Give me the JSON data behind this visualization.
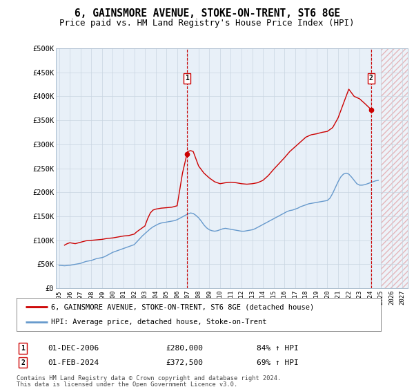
{
  "title": "6, GAINSMORE AVENUE, STOKE-ON-TRENT, ST6 8GE",
  "subtitle": "Price paid vs. HM Land Registry's House Price Index (HPI)",
  "title_fontsize": 10.5,
  "subtitle_fontsize": 9,
  "ylim": [
    0,
    500000
  ],
  "yticks": [
    0,
    50000,
    100000,
    150000,
    200000,
    250000,
    300000,
    350000,
    400000,
    450000,
    500000
  ],
  "ytick_labels": [
    "£0",
    "£50K",
    "£100K",
    "£150K",
    "£200K",
    "£250K",
    "£300K",
    "£350K",
    "£400K",
    "£450K",
    "£500K"
  ],
  "xlim_start": 1994.7,
  "xlim_end": 2027.5,
  "xticks": [
    1995,
    1996,
    1997,
    1998,
    1999,
    2000,
    2001,
    2002,
    2003,
    2004,
    2005,
    2006,
    2007,
    2008,
    2009,
    2010,
    2011,
    2012,
    2013,
    2014,
    2015,
    2016,
    2017,
    2018,
    2019,
    2020,
    2021,
    2022,
    2023,
    2024,
    2025,
    2026,
    2027
  ],
  "hpi_color": "#6699cc",
  "property_color": "#cc0000",
  "marker1_x": 2006.917,
  "marker1_y": 280000,
  "marker2_x": 2024.083,
  "marker2_y": 372500,
  "marker1_label": "01-DEC-2006",
  "marker1_price": "£280,000",
  "marker1_hpi": "84% ↑ HPI",
  "marker2_label": "01-FEB-2024",
  "marker2_price": "£372,500",
  "marker2_hpi": "69% ↑ HPI",
  "legend_line1": "6, GAINSMORE AVENUE, STOKE-ON-TRENT, ST6 8GE (detached house)",
  "legend_line2": "HPI: Average price, detached house, Stoke-on-Trent",
  "footer_line1": "Contains HM Land Registry data © Crown copyright and database right 2024.",
  "footer_line2": "This data is licensed under the Open Government Licence v3.0.",
  "plot_bg": "#e8f0f8",
  "hatch_start": 2025.0,
  "hpi_data_x": [
    1995.0,
    1995.25,
    1995.5,
    1995.75,
    1996.0,
    1996.25,
    1996.5,
    1996.75,
    1997.0,
    1997.25,
    1997.5,
    1997.75,
    1998.0,
    1998.25,
    1998.5,
    1998.75,
    1999.0,
    1999.25,
    1999.5,
    1999.75,
    2000.0,
    2000.25,
    2000.5,
    2000.75,
    2001.0,
    2001.25,
    2001.5,
    2001.75,
    2002.0,
    2002.25,
    2002.5,
    2002.75,
    2003.0,
    2003.25,
    2003.5,
    2003.75,
    2004.0,
    2004.25,
    2004.5,
    2004.75,
    2005.0,
    2005.25,
    2005.5,
    2005.75,
    2006.0,
    2006.25,
    2006.5,
    2006.75,
    2007.0,
    2007.25,
    2007.5,
    2007.75,
    2008.0,
    2008.25,
    2008.5,
    2008.75,
    2009.0,
    2009.25,
    2009.5,
    2009.75,
    2010.0,
    2010.25,
    2010.5,
    2010.75,
    2011.0,
    2011.25,
    2011.5,
    2011.75,
    2012.0,
    2012.25,
    2012.5,
    2012.75,
    2013.0,
    2013.25,
    2013.5,
    2013.75,
    2014.0,
    2014.25,
    2014.5,
    2014.75,
    2015.0,
    2015.25,
    2015.5,
    2015.75,
    2016.0,
    2016.25,
    2016.5,
    2016.75,
    2017.0,
    2017.25,
    2017.5,
    2017.75,
    2018.0,
    2018.25,
    2018.5,
    2018.75,
    2019.0,
    2019.25,
    2019.5,
    2019.75,
    2020.0,
    2020.25,
    2020.5,
    2020.75,
    2021.0,
    2021.25,
    2021.5,
    2021.75,
    2022.0,
    2022.25,
    2022.5,
    2022.75,
    2023.0,
    2023.25,
    2023.5,
    2023.75,
    2024.0,
    2024.25,
    2024.5,
    2024.75
  ],
  "hpi_data_y": [
    48000,
    47500,
    47000,
    47500,
    48000,
    49000,
    50000,
    51000,
    52000,
    54000,
    56000,
    57000,
    58000,
    60000,
    62000,
    63000,
    64000,
    66000,
    69000,
    72000,
    75000,
    77000,
    79000,
    81000,
    83000,
    85000,
    87000,
    89000,
    91000,
    97000,
    103000,
    109000,
    114000,
    119000,
    124000,
    128000,
    131000,
    134000,
    136000,
    137000,
    138000,
    139000,
    140000,
    141000,
    143000,
    146000,
    149000,
    152000,
    155000,
    157000,
    156000,
    152000,
    147000,
    140000,
    132000,
    126000,
    122000,
    120000,
    119000,
    120000,
    122000,
    124000,
    125000,
    124000,
    123000,
    122000,
    121000,
    120000,
    119000,
    119000,
    120000,
    121000,
    122000,
    124000,
    127000,
    130000,
    133000,
    136000,
    139000,
    142000,
    145000,
    148000,
    151000,
    154000,
    157000,
    160000,
    162000,
    163000,
    165000,
    167000,
    170000,
    172000,
    174000,
    176000,
    177000,
    178000,
    179000,
    180000,
    181000,
    182000,
    183000,
    188000,
    198000,
    210000,
    222000,
    232000,
    238000,
    240000,
    238000,
    232000,
    225000,
    218000,
    215000,
    215000,
    216000,
    218000,
    220000,
    222000,
    224000,
    225000
  ],
  "property_data_x": [
    1995.5,
    1995.75,
    1996.0,
    1996.5,
    1997.0,
    1997.5,
    1998.0,
    1998.5,
    1999.0,
    1999.5,
    2000.0,
    2000.5,
    2001.0,
    2001.5,
    2002.0,
    2002.25,
    2002.5,
    2002.75,
    2003.0,
    2003.25,
    2003.5,
    2003.75,
    2004.0,
    2004.5,
    2005.0,
    2005.5,
    2006.0,
    2006.5,
    2006.917,
    2007.0,
    2007.25,
    2007.5,
    2007.75,
    2008.0,
    2008.5,
    2009.0,
    2009.5,
    2010.0,
    2010.5,
    2011.0,
    2011.5,
    2012.0,
    2012.5,
    2013.0,
    2013.5,
    2014.0,
    2014.5,
    2015.0,
    2015.5,
    2016.0,
    2016.5,
    2017.0,
    2017.5,
    2018.0,
    2018.5,
    2019.0,
    2019.5,
    2020.0,
    2020.5,
    2021.0,
    2021.5,
    2022.0,
    2022.5,
    2023.0,
    2023.5,
    2024.083
  ],
  "property_data_y": [
    90000,
    93000,
    95000,
    93000,
    96000,
    99000,
    100000,
    101000,
    102000,
    104000,
    105000,
    107000,
    109000,
    110000,
    113000,
    118000,
    122000,
    126000,
    130000,
    145000,
    157000,
    163000,
    165000,
    167000,
    168000,
    169000,
    172000,
    240000,
    280000,
    285000,
    287000,
    285000,
    270000,
    255000,
    240000,
    230000,
    222000,
    218000,
    220000,
    221000,
    220000,
    218000,
    217000,
    218000,
    220000,
    225000,
    235000,
    248000,
    260000,
    272000,
    285000,
    295000,
    305000,
    315000,
    320000,
    322000,
    325000,
    327000,
    335000,
    355000,
    385000,
    415000,
    400000,
    395000,
    385000,
    372500
  ]
}
